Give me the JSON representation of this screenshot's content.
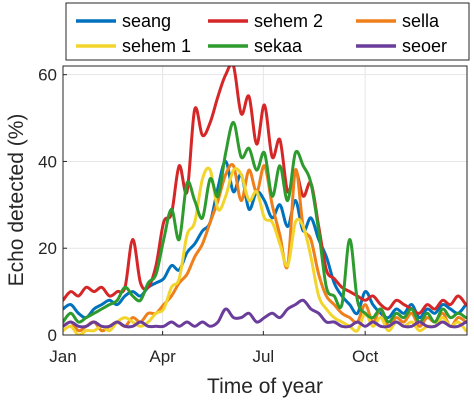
{
  "chart_data": {
    "type": "line",
    "title": "",
    "xlabel": "Time of year",
    "ylabel": "Echo detected (%)",
    "xlim": [
      1,
      366
    ],
    "ylim": [
      0,
      62
    ],
    "grid": true,
    "legend_position": "top-outside",
    "x_ticks": [
      {
        "label": "Jan",
        "day": 1
      },
      {
        "label": "Apr",
        "day": 91
      },
      {
        "label": "Jul",
        "day": 182
      },
      {
        "label": "Oct",
        "day": 274
      }
    ],
    "y_ticks": [
      0,
      20,
      40,
      60
    ],
    "x": [
      1,
      8,
      15,
      22,
      29,
      36,
      43,
      50,
      57,
      64,
      71,
      78,
      85,
      92,
      99,
      106,
      113,
      120,
      127,
      134,
      141,
      148,
      155,
      162,
      169,
      176,
      183,
      190,
      197,
      204,
      211,
      218,
      225,
      232,
      239,
      246,
      253,
      260,
      267,
      274,
      281,
      288,
      295,
      302,
      309,
      316,
      323,
      330,
      337,
      344,
      351,
      358,
      365
    ],
    "series": [
      {
        "name": "seang",
        "color": "#0072BD",
        "values": [
          6,
          7,
          5,
          4,
          6,
          7,
          8,
          7,
          9,
          10,
          9,
          11,
          12,
          13,
          16,
          15,
          19,
          21,
          24,
          26,
          34,
          40,
          33,
          37,
          29,
          33,
          31,
          27,
          30,
          25,
          31,
          24,
          27,
          22,
          18,
          12,
          9,
          7,
          5,
          10,
          7,
          5,
          4,
          6,
          5,
          7,
          4,
          6,
          5,
          7,
          6,
          5,
          7
        ]
      },
      {
        "name": "sehem 2",
        "color": "#D62728",
        "values": [
          8,
          10,
          9,
          11,
          10,
          11,
          9,
          10,
          11,
          22,
          12,
          11,
          16,
          26,
          28,
          39,
          33,
          52,
          46,
          49,
          55,
          60,
          62,
          51,
          55,
          44,
          53,
          41,
          45,
          33,
          38,
          32,
          35,
          25,
          15,
          13,
          11,
          10,
          9,
          8,
          9,
          7,
          6,
          8,
          7,
          6,
          5,
          7,
          6,
          8,
          7,
          9,
          7
        ]
      },
      {
        "name": "sella",
        "color": "#EF7F1A",
        "values": [
          2,
          3,
          1,
          2,
          3,
          1,
          2,
          3,
          2,
          4,
          3,
          5,
          5,
          7,
          9,
          12,
          14,
          18,
          21,
          26,
          31,
          37,
          39,
          31,
          38,
          33,
          39,
          30,
          23,
          16,
          38,
          25,
          22,
          14,
          9,
          7,
          5,
          4,
          3,
          7,
          3,
          6,
          2,
          4,
          3,
          5,
          2,
          4,
          3,
          5,
          2,
          4,
          3
        ]
      },
      {
        "name": "sehem 1",
        "color": "#F2D52C",
        "values": [
          1,
          2,
          0,
          1,
          1,
          2,
          1,
          3,
          4,
          3,
          2,
          3,
          5,
          6,
          11,
          13,
          23,
          26,
          36,
          38,
          29,
          32,
          38,
          37,
          31,
          33,
          27,
          26,
          21,
          16,
          26,
          25,
          18,
          9,
          6,
          4,
          3,
          2,
          1,
          5,
          2,
          4,
          1,
          3,
          2,
          3,
          1,
          2,
          2,
          4,
          2,
          3,
          1
        ]
      },
      {
        "name": "sekaa",
        "color": "#2E9B2E",
        "values": [
          3,
          5,
          3,
          4,
          5,
          6,
          7,
          8,
          11,
          9,
          8,
          12,
          14,
          22,
          29,
          22,
          35,
          31,
          27,
          36,
          32,
          42,
          49,
          41,
          43,
          38,
          42,
          32,
          39,
          31,
          42,
          39,
          35,
          24,
          11,
          9,
          7,
          22,
          8,
          5,
          4,
          6,
          3,
          5,
          4,
          6,
          3,
          5,
          3,
          6,
          4,
          5,
          4
        ]
      },
      {
        "name": "seoer",
        "color": "#6B3D9A",
        "values": [
          2,
          3,
          2,
          2,
          3,
          2,
          2,
          3,
          2,
          2,
          3,
          2,
          2,
          2,
          3,
          2,
          3,
          2,
          3,
          2,
          3,
          6,
          4,
          4,
          5,
          3,
          4,
          5,
          4,
          6,
          7,
          8,
          6,
          5,
          3,
          3,
          2,
          2,
          3,
          2,
          3,
          2,
          2,
          3,
          2,
          2,
          3,
          2,
          2,
          3,
          2,
          2,
          3
        ]
      }
    ]
  }
}
